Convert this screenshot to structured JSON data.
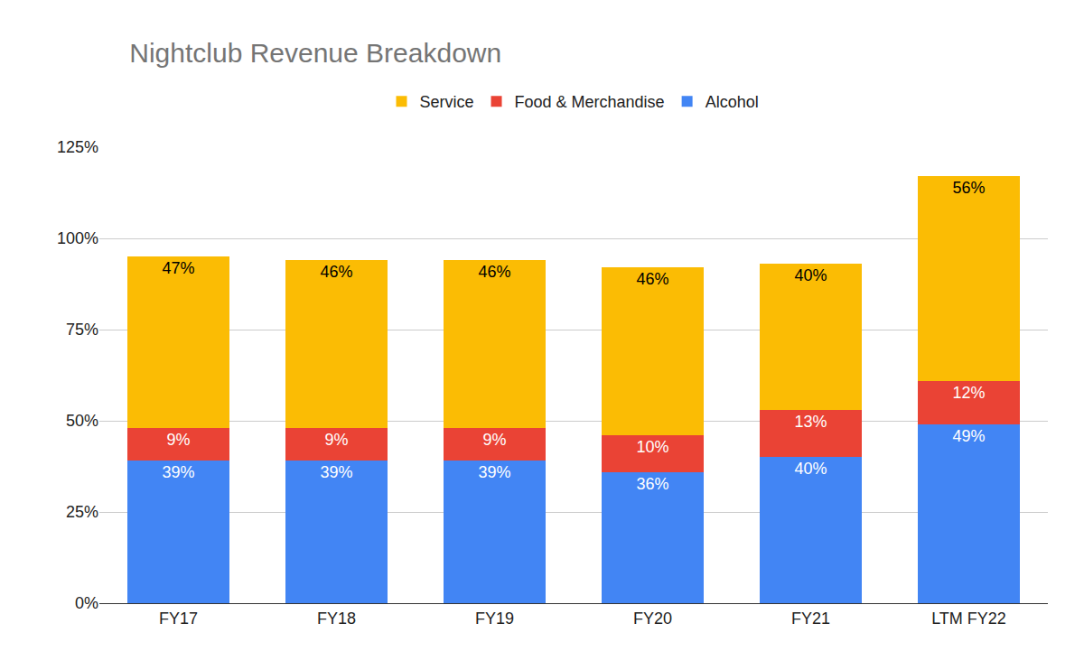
{
  "chart_data": {
    "type": "bar",
    "title": "Nightclub Revenue Breakdown",
    "categories": [
      "FY17",
      "FY18",
      "FY19",
      "FY20",
      "FY21",
      "LTM FY22"
    ],
    "series": [
      {
        "name": "Alcohol",
        "color": "#4285f4",
        "values": [
          39,
          39,
          39,
          36,
          40,
          49
        ],
        "value_labels": [
          "39%",
          "39%",
          "39%",
          "36%",
          "40%",
          "49%"
        ]
      },
      {
        "name": "Food & Merchandise",
        "color": "#ea4335",
        "values": [
          9,
          9,
          9,
          10,
          13,
          12
        ],
        "value_labels": [
          "9%",
          "9%",
          "9%",
          "10%",
          "13%",
          "12%"
        ]
      },
      {
        "name": "Service",
        "color": "#fbbc04",
        "values": [
          47,
          46,
          46,
          46,
          40,
          56
        ],
        "value_labels": [
          "47%",
          "46%",
          "46%",
          "46%",
          "40%",
          "56%"
        ]
      }
    ],
    "ylim": [
      0,
      125
    ],
    "yticks": [
      {
        "value": 0,
        "label": "0%"
      },
      {
        "value": 25,
        "label": "25%"
      },
      {
        "value": 50,
        "label": "50%"
      },
      {
        "value": 75,
        "label": "75%"
      },
      {
        "value": 100,
        "label": "100%"
      },
      {
        "value": 125,
        "label": "125%"
      }
    ],
    "stacked": true,
    "data_labels": true,
    "grid": true,
    "legend": "top"
  }
}
